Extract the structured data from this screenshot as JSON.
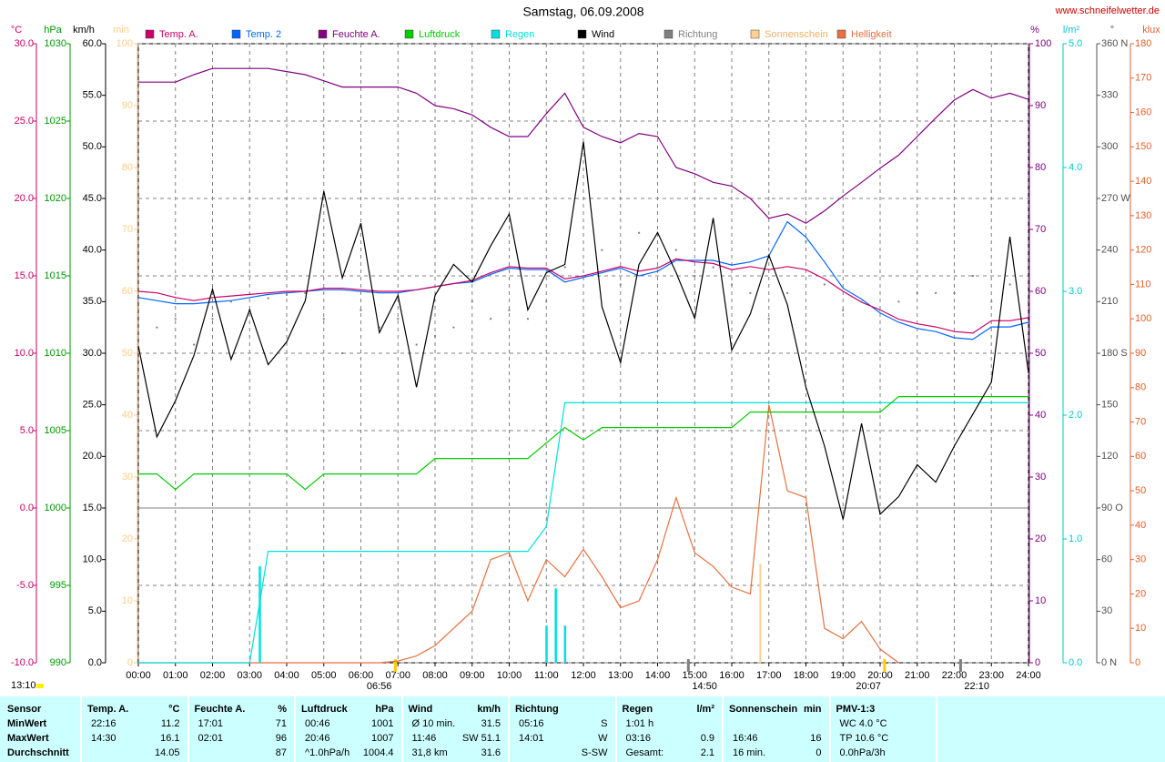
{
  "chart_data": {
    "type": "line",
    "title": "Samstag, 06.09.2008",
    "source": "www.schneifelwetter.de",
    "grid": true,
    "zero_line": true,
    "xlim": [
      0,
      24
    ],
    "xticks": [
      {
        "value": 0,
        "label": "00:00"
      },
      {
        "value": 1,
        "label": "01:00"
      },
      {
        "value": 2,
        "label": "02:00"
      },
      {
        "value": 3,
        "label": "03:00"
      },
      {
        "value": 4,
        "label": "04:00"
      },
      {
        "value": 5,
        "label": "05:00"
      },
      {
        "value": 6,
        "label": "06:00"
      },
      {
        "value": 7,
        "label": "07:00"
      },
      {
        "value": 8,
        "label": "08:00"
      },
      {
        "value": 9,
        "label": "09:00"
      },
      {
        "value": 10,
        "label": "10:00"
      },
      {
        "value": 11,
        "label": "11:00"
      },
      {
        "value": 12,
        "label": "12:00"
      },
      {
        "value": 13,
        "label": "13:00"
      },
      {
        "value": 14,
        "label": "14:00"
      },
      {
        "value": 15,
        "label": "15:00"
      },
      {
        "value": 16,
        "label": "16:00"
      },
      {
        "value": 17,
        "label": "17:00"
      },
      {
        "value": 18,
        "label": "18:00"
      },
      {
        "value": 19,
        "label": "19:00"
      },
      {
        "value": 20,
        "label": "20:00"
      },
      {
        "value": 21,
        "label": "21:00"
      },
      {
        "value": 22,
        "label": "22:00"
      },
      {
        "value": 23,
        "label": "23:00"
      },
      {
        "value": 24,
        "label": "24:00"
      }
    ],
    "x": [
      0,
      0.5,
      1,
      1.5,
      2,
      2.5,
      3,
      3.5,
      4,
      4.5,
      5,
      5.5,
      6,
      6.5,
      7,
      7.5,
      8,
      8.5,
      9,
      9.5,
      10,
      10.5,
      11,
      11.5,
      12,
      12.5,
      13,
      13.5,
      14,
      14.5,
      15,
      15.5,
      16,
      16.5,
      17,
      17.5,
      18,
      18.5,
      19,
      19.5,
      20,
      20.5,
      21,
      21.5,
      22,
      22.5,
      23,
      23.5,
      24
    ],
    "axes": [
      {
        "id": "temp",
        "label": "°C",
        "side": "left",
        "color": "#cc0066",
        "grid": true,
        "lim": [
          -10,
          30
        ],
        "ticks": [
          {
            "value": -10,
            "label": "-10.0"
          },
          {
            "value": -5,
            "label": "-5.0"
          },
          {
            "value": 0,
            "label": "0.0"
          },
          {
            "value": 5,
            "label": "5.0"
          },
          {
            "value": 10,
            "label": "10.0"
          },
          {
            "value": 15,
            "label": "15.0"
          },
          {
            "value": 20,
            "label": "20.0"
          },
          {
            "value": 25,
            "label": "25.0"
          },
          {
            "value": 30,
            "label": "30.0"
          }
        ]
      },
      {
        "id": "press",
        "label": "hPa",
        "side": "left",
        "color": "#009900",
        "lim": [
          990,
          1030
        ],
        "ticks": [
          990,
          995,
          1000,
          1005,
          1010,
          1015,
          1020,
          1025,
          1030
        ]
      },
      {
        "id": "wind",
        "label": "km/h",
        "side": "left",
        "color": "#000000",
        "lim": [
          0,
          60
        ],
        "ticks": [
          {
            "value": 0,
            "label": "0.0"
          },
          {
            "value": 5,
            "label": "5.0"
          },
          {
            "value": 10,
            "label": "10.0"
          },
          {
            "value": 15,
            "label": "15.0"
          },
          {
            "value": 20,
            "label": "20.0"
          },
          {
            "value": 25,
            "label": "25.0"
          },
          {
            "value": 30,
            "label": "30.0"
          },
          {
            "value": 35,
            "label": "35.0"
          },
          {
            "value": 40,
            "label": "40.0"
          },
          {
            "value": 45,
            "label": "45.0"
          },
          {
            "value": 50,
            "label": "50.0"
          },
          {
            "value": 55,
            "label": "55.0"
          },
          {
            "value": 60,
            "label": "60.0"
          }
        ]
      },
      {
        "id": "sun",
        "label": "min",
        "side": "left",
        "color": "#ffcc88",
        "lim": [
          0,
          100
        ],
        "ticks": [
          0,
          10,
          20,
          30,
          40,
          50,
          60,
          70,
          80,
          90,
          100
        ]
      },
      {
        "id": "hum",
        "label": "%",
        "side": "right",
        "color": "#800080",
        "lim": [
          0,
          100
        ],
        "ticks": [
          0,
          10,
          20,
          30,
          40,
          50,
          60,
          70,
          80,
          90,
          100
        ]
      },
      {
        "id": "rain",
        "label": "l/m²",
        "side": "right",
        "color": "#00cccc",
        "lim": [
          0,
          5
        ],
        "ticks": [
          {
            "value": 0,
            "label": "0.0"
          },
          {
            "value": 1,
            "label": "1.0"
          },
          {
            "value": 2,
            "label": "2.0"
          },
          {
            "value": 3,
            "label": "3.0"
          },
          {
            "value": 4,
            "label": "4.0"
          },
          {
            "value": 5,
            "label": "5.0"
          }
        ]
      },
      {
        "id": "dir",
        "label": "°",
        "side": "right",
        "color": "#505050",
        "lim": [
          0,
          360
        ],
        "ticks": [
          {
            "value": 0,
            "label": "0 N"
          },
          30,
          60,
          {
            "value": 90,
            "label": "90 O"
          },
          120,
          150,
          {
            "value": 180,
            "label": "180 S"
          },
          210,
          240,
          {
            "value": 270,
            "label": "270 W"
          },
          300,
          330,
          {
            "value": 360,
            "label": "360 N"
          }
        ]
      },
      {
        "id": "lux",
        "label": "klux",
        "side": "right",
        "color": "#e06030",
        "lim": [
          0,
          180
        ],
        "ticks": [
          0,
          10,
          20,
          30,
          40,
          50,
          60,
          70,
          80,
          90,
          100,
          110,
          120,
          130,
          140,
          150,
          160,
          170,
          180
        ]
      }
    ],
    "series": [
      {
        "name": "Temp. A.",
        "color": "#cc0066",
        "axis": "temp",
        "values": [
          14.0,
          13.9,
          13.6,
          13.4,
          13.6,
          13.7,
          13.8,
          13.9,
          14.0,
          14.0,
          14.2,
          14.2,
          14.1,
          14.0,
          14.0,
          14.1,
          14.3,
          14.5,
          14.7,
          15.2,
          15.6,
          15.5,
          15.5,
          14.8,
          15.0,
          15.3,
          15.6,
          15.3,
          15.5,
          16.1,
          15.9,
          15.8,
          15.4,
          15.6,
          15.4,
          15.6,
          15.4,
          14.8,
          14.0,
          13.3,
          12.8,
          12.2,
          11.9,
          11.7,
          11.4,
          11.3,
          12.1,
          12.1,
          12.3
        ]
      },
      {
        "name": "Temp. 2",
        "color": "#0066ff",
        "axis": "temp",
        "values": [
          13.6,
          13.4,
          13.2,
          13.2,
          13.3,
          13.4,
          13.6,
          13.8,
          13.9,
          14.0,
          14.1,
          14.1,
          14.0,
          13.9,
          13.9,
          14.1,
          14.3,
          14.5,
          14.6,
          15.1,
          15.5,
          15.4,
          15.4,
          14.6,
          14.9,
          15.2,
          15.5,
          15.0,
          15.3,
          16.0,
          16.0,
          16.0,
          15.7,
          15.9,
          16.3,
          18.5,
          17.5,
          15.9,
          14.2,
          13.5,
          12.6,
          12.0,
          11.6,
          11.4,
          11.0,
          10.9,
          11.7,
          11.7,
          12.0
        ]
      },
      {
        "name": "Feuchte A.",
        "color": "#800080",
        "axis": "hum",
        "values": [
          93.8,
          93.8,
          93.8,
          95,
          96,
          96,
          96,
          96,
          95.5,
          95,
          94,
          93,
          93,
          93,
          93,
          92,
          90,
          89.5,
          88.5,
          86.5,
          85,
          85,
          88.7,
          92,
          86.5,
          85,
          84,
          85.5,
          85,
          80,
          79,
          77.6,
          77,
          75,
          71.8,
          72.5,
          71,
          73,
          75.4,
          77.6,
          79.9,
          82,
          85,
          88,
          90.9,
          92.6,
          91.2,
          92,
          91
        ]
      },
      {
        "name": "Luftdruck",
        "color": "#00cc00",
        "axis": "press",
        "values": [
          1002.2,
          1002.2,
          1001.2,
          1002.2,
          1002.2,
          1002.2,
          1002.2,
          1002.2,
          1002.2,
          1001.2,
          1002.2,
          1002.2,
          1002.2,
          1002.2,
          1002.2,
          1002.2,
          1003.2,
          1003.2,
          1003.2,
          1003.2,
          1003.2,
          1003.2,
          1004.2,
          1005.2,
          1004.4,
          1005.2,
          1005.2,
          1005.2,
          1005.2,
          1005.2,
          1005.2,
          1005.2,
          1005.2,
          1006.2,
          1006.2,
          1006.2,
          1006.2,
          1006.2,
          1006.2,
          1006.2,
          1006.2,
          1007.2,
          1007.2,
          1007.2,
          1007.2,
          1007.2,
          1007.2,
          1007.2,
          1007.2
        ]
      },
      {
        "name": "Regen",
        "color": "#00e0e0",
        "axis": "rain",
        "values": [
          0,
          0,
          0,
          0,
          0,
          0,
          0,
          0.9,
          0.9,
          0.9,
          0.9,
          0.9,
          0.9,
          0.9,
          0.9,
          0.9,
          0.9,
          0.9,
          0.9,
          0.9,
          0.9,
          0.9,
          1.1,
          2.1,
          2.1,
          2.1,
          2.1,
          2.1,
          2.1,
          2.1,
          2.1,
          2.1,
          2.1,
          2.1,
          2.1,
          2.1,
          2.1,
          2.1,
          2.1,
          2.1,
          2.1,
          2.1,
          2.1,
          2.1,
          2.1,
          2.1,
          2.1,
          2.1,
          2.1
        ],
        "bar_x": [
          3.27,
          11.0,
          11.25,
          11.5
        ],
        "bar_values": [
          0.78,
          0.3,
          0.6,
          0.3
        ]
      },
      {
        "name": "Wind",
        "color": "#000000",
        "axis": "wind",
        "values": [
          30.7,
          21.9,
          25.4,
          29.8,
          36.2,
          29.4,
          34.2,
          28.9,
          31.1,
          35.1,
          45.7,
          37.3,
          42.6,
          32.0,
          35.6,
          26.7,
          35.6,
          38.6,
          36.9,
          40.4,
          43.5,
          34.2,
          37.8,
          38.6,
          50.5,
          34.5,
          29.1,
          38.6,
          41.7,
          37.8,
          33.4,
          43.1,
          30.3,
          33.8,
          39.5,
          34.7,
          26.7,
          21.0,
          13.9,
          23.2,
          14.4,
          16.1,
          19.2,
          17.5,
          21.0,
          24.1,
          27.2,
          41.3,
          28.1
        ]
      },
      {
        "name": "Richtung",
        "color": "#808080",
        "axis": "dir",
        "style": "dots",
        "values": [
          205,
          195,
          200,
          185,
          200,
          210,
          205,
          212,
          214,
          215,
          200,
          180,
          205,
          195,
          200,
          185,
          190,
          195,
          210,
          200,
          205,
          200,
          210,
          230,
          225,
          240,
          220,
          250,
          230,
          240,
          225,
          230,
          220,
          215,
          200,
          215,
          245,
          220,
          205,
          210,
          205,
          210,
          215,
          215,
          215,
          225,
          210,
          220,
          210
        ]
      },
      {
        "name": "Sonnenschein",
        "color": "#ffd090",
        "axis": "sun",
        "style": "bars",
        "x": [
          16.77
        ],
        "values": [
          16
        ]
      },
      {
        "name": "Helligkeit",
        "color": "#e87040",
        "axis": "lux",
        "values": [
          0,
          0,
          0,
          0,
          0,
          0,
          0,
          0,
          0,
          0,
          0,
          0,
          0,
          0,
          0.5,
          2,
          5,
          10,
          15,
          30,
          32,
          18,
          30,
          25,
          33,
          25,
          16,
          18,
          30,
          48,
          32,
          28,
          22,
          20,
          75,
          50,
          48,
          10,
          7,
          12,
          4,
          0,
          null,
          null,
          null,
          null,
          null,
          null,
          null
        ]
      }
    ],
    "daylength": "13:10",
    "events": [
      {
        "x": 6.93,
        "label": "06:56",
        "color": "#ffcc00"
      },
      {
        "x": 14.83,
        "label": "14:50",
        "color": "#808080"
      },
      {
        "x": 20.12,
        "label": "20:07",
        "color": "#ffcc00"
      },
      {
        "x": 22.17,
        "label": "22:10",
        "color": "#808080"
      }
    ]
  },
  "table": {
    "row_header": "Sensor",
    "row_labels": [
      "MinWert",
      "MaxWert",
      "Durchschnitt"
    ],
    "columns": [
      {
        "header": "Temp. A.",
        "unit": "°C",
        "rows": [
          [
            "22:16",
            "11.2"
          ],
          [
            "14:30",
            "16.1"
          ],
          [
            null,
            "14.05"
          ]
        ]
      },
      {
        "header": "Feuchte A.",
        "unit": "%",
        "rows": [
          [
            "17:01",
            "71"
          ],
          [
            "02:01",
            "96"
          ],
          [
            null,
            "87"
          ]
        ]
      },
      {
        "header": "Luftdruck",
        "unit": "hPa",
        "rows": [
          [
            "00:46",
            "1001"
          ],
          [
            "20:46",
            "1007"
          ],
          [
            "^1.0hPa/h",
            "1004.4"
          ]
        ]
      },
      {
        "header": "Wind",
        "unit": "km/h",
        "rows": [
          [
            "Ø 10 min.",
            "31.5"
          ],
          [
            "11:46",
            "SW 51.1"
          ],
          [
            "31,8 km",
            "31.6"
          ]
        ]
      },
      {
        "header": "Richtung",
        "unit": null,
        "rows": [
          [
            "05:16",
            "S"
          ],
          [
            "14:01",
            "W"
          ],
          [
            null,
            "S-SW"
          ]
        ]
      },
      {
        "header": "Regen",
        "unit": "l/m²",
        "rows": [
          [
            "1:01 h",
            null
          ],
          [
            "03:16",
            "0.9"
          ],
          [
            "Gesamt:",
            "2.1"
          ]
        ]
      },
      {
        "header": "Sonnenschein",
        "unit": "min",
        "rows": [
          [
            null,
            null
          ],
          [
            "16:46",
            "16"
          ],
          [
            "16 min.",
            "0"
          ]
        ]
      },
      {
        "header": "PMV-1:3",
        "unit": null,
        "rows": [
          [
            "WC 4.0 °C",
            null
          ],
          [
            "TP 10.6 °C",
            null
          ],
          [
            "0.0hPa/3h",
            null
          ]
        ]
      }
    ]
  }
}
